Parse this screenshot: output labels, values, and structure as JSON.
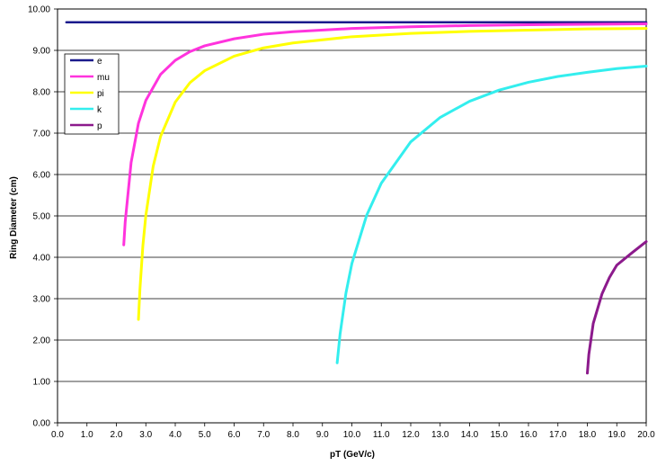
{
  "chart_data": {
    "type": "line",
    "xlabel": "pT  (GeV/c)",
    "ylabel": "Ring Diameter (cm)",
    "xlim": [
      0.0,
      20.0
    ],
    "ylim": [
      0.0,
      10.0
    ],
    "xticks": [
      "0.0",
      "1.0",
      "2.0",
      "3.0",
      "4.0",
      "5.0",
      "6.0",
      "7.0",
      "8.0",
      "9.0",
      "10.0",
      "11.0",
      "12.0",
      "13.0",
      "14.0",
      "15.0",
      "16.0",
      "17.0",
      "18.0",
      "19.0",
      "20.0"
    ],
    "yticks": [
      "0.00",
      "1.00",
      "2.00",
      "3.00",
      "4.00",
      "5.00",
      "6.00",
      "7.00",
      "8.00",
      "9.00",
      "10.00"
    ],
    "grid": "horizontal",
    "legend_position": "top-left",
    "series": [
      {
        "name": "e",
        "color": "#1a1a8c",
        "x": [
          0.3,
          20.0
        ],
        "y": [
          9.68,
          9.68
        ]
      },
      {
        "name": "mu",
        "color": "#ff33dd",
        "x": [
          2.25,
          2.3,
          2.5,
          2.75,
          3.0,
          3.5,
          4.0,
          4.5,
          5.0,
          6.0,
          7.0,
          8.0,
          10.0,
          12.0,
          14.0,
          16.0,
          18.0,
          20.0
        ],
        "y": [
          4.3,
          4.86,
          6.29,
          7.24,
          7.79,
          8.42,
          8.76,
          8.97,
          9.11,
          9.28,
          9.39,
          9.45,
          9.53,
          9.57,
          9.6,
          9.62,
          9.63,
          9.64
        ]
      },
      {
        "name": "pi",
        "color": "#ffff00",
        "x": [
          2.75,
          2.8,
          2.9,
          3.0,
          3.25,
          3.5,
          4.0,
          4.5,
          5.0,
          6.0,
          7.0,
          8.0,
          10.0,
          12.0,
          14.0,
          16.0,
          18.0,
          20.0
        ],
        "y": [
          2.5,
          3.23,
          4.28,
          5.01,
          6.2,
          6.92,
          7.75,
          8.22,
          8.51,
          8.86,
          9.06,
          9.18,
          9.33,
          9.41,
          9.46,
          9.49,
          9.52,
          9.53
        ]
      },
      {
        "name": "k",
        "color": "#33eeee",
        "x": [
          9.5,
          9.6,
          9.8,
          10.0,
          10.5,
          11.0,
          12.0,
          13.0,
          14.0,
          15.0,
          16.0,
          17.0,
          18.0,
          19.0,
          20.0
        ],
        "y": [
          1.45,
          2.15,
          3.14,
          3.85,
          5.01,
          5.79,
          6.79,
          7.38,
          7.77,
          8.04,
          8.23,
          8.37,
          8.47,
          8.56,
          8.62
        ]
      },
      {
        "name": "p",
        "color": "#8c1a8c",
        "x": [
          18.0,
          18.05,
          18.2,
          18.5,
          18.75,
          19.0,
          19.5,
          20.0
        ],
        "y": [
          1.2,
          1.65,
          2.4,
          3.12,
          3.51,
          3.81,
          4.1,
          4.38
        ]
      }
    ]
  }
}
